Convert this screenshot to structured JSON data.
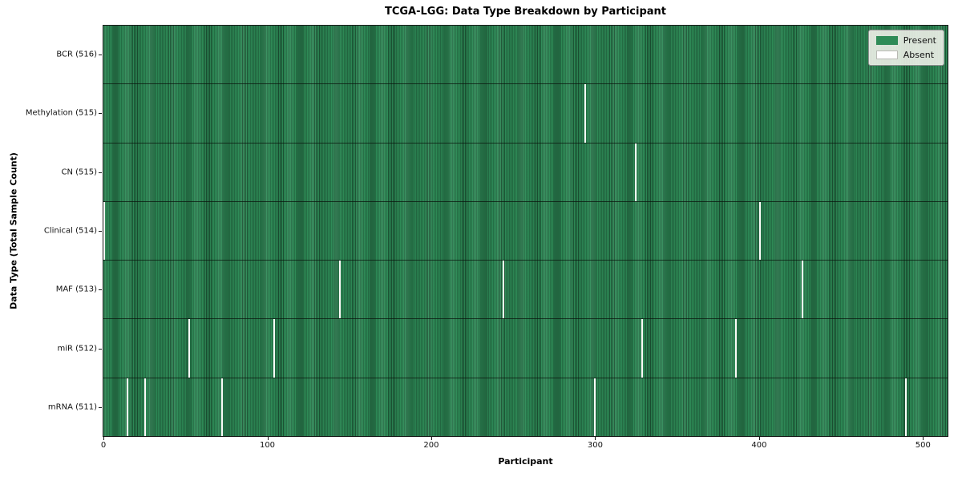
{
  "page": {
    "background_color": "#ffffff"
  },
  "chart_data": {
    "type": "heatmap",
    "title": "TCGA-LGG: Data Type Breakdown by Participant",
    "xlabel": "Participant",
    "ylabel": "Data Type (Total Sample Count)",
    "n_participants": 516,
    "x_ticks": [
      0,
      100,
      200,
      300,
      400,
      500
    ],
    "x_range": [
      0,
      515
    ],
    "grid": false,
    "colors": {
      "present": "#2e8b57",
      "present_edge": "#1b5233",
      "absent": "#ffffff",
      "axis": "#1a1a1a"
    },
    "legend": {
      "position": "upper-right",
      "entries": [
        {
          "label": "Present",
          "color": "#2e8b57"
        },
        {
          "label": "Absent",
          "color": "#ffffff"
        }
      ]
    },
    "rows": [
      {
        "label": "BCR (516)",
        "data_type": "BCR",
        "total_samples": 516,
        "absent_participants": []
      },
      {
        "label": "Methylation (515)",
        "data_type": "Methylation",
        "total_samples": 515,
        "absent_participants": [
          294
        ]
      },
      {
        "label": "CN (515)",
        "data_type": "CN",
        "total_samples": 515,
        "absent_participants": [
          325
        ]
      },
      {
        "label": "Clinical (514)",
        "data_type": "Clinical",
        "total_samples": 514,
        "absent_participants": [
          0,
          401
        ]
      },
      {
        "label": "MAF (513)",
        "data_type": "MAF",
        "total_samples": 513,
        "absent_participants": [
          144,
          244,
          427
        ]
      },
      {
        "label": "miR (512)",
        "data_type": "miR",
        "total_samples": 512,
        "absent_participants": [
          52,
          104,
          329,
          386
        ]
      },
      {
        "label": "mRNA (511)",
        "data_type": "mRNA",
        "total_samples": 511,
        "absent_participants": [
          14,
          25,
          72,
          300,
          490
        ]
      }
    ]
  }
}
